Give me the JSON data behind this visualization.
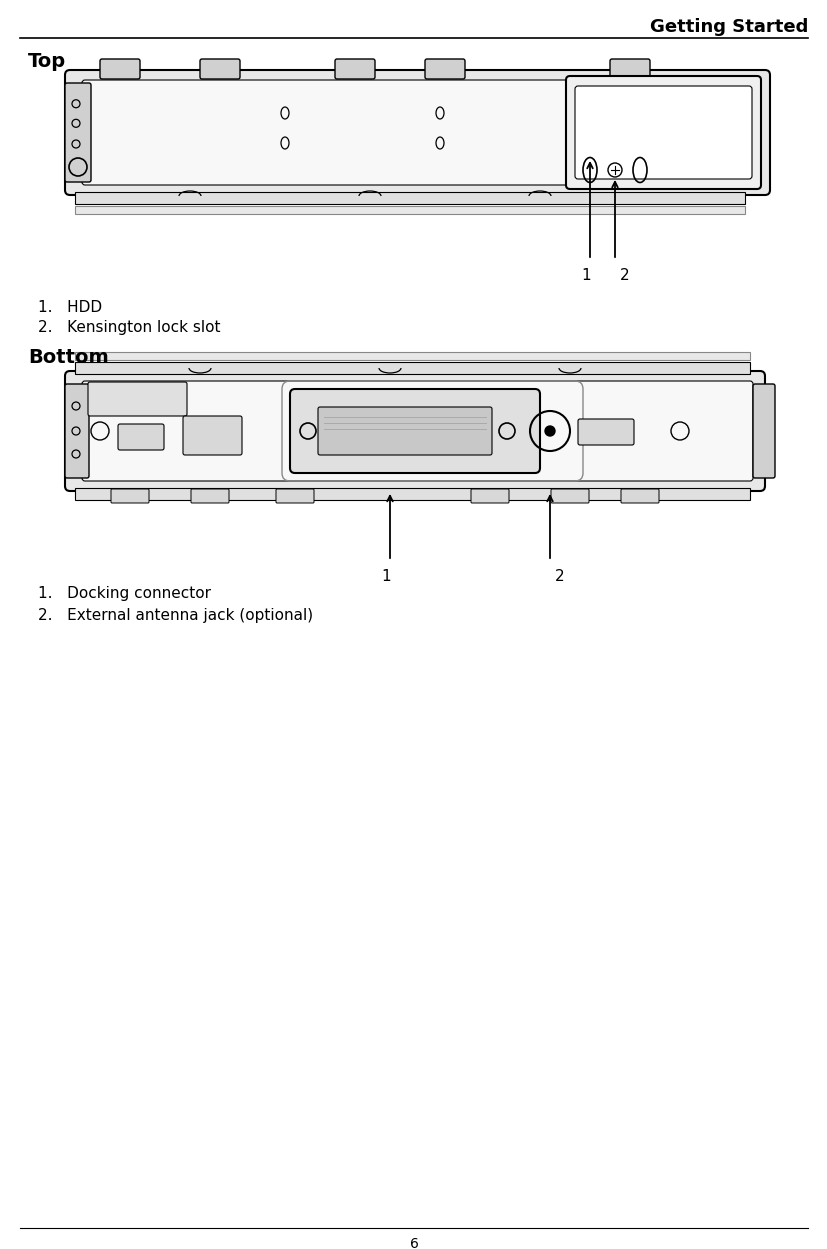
{
  "title": "Getting Started",
  "page_number": "6",
  "bg_color": "#ffffff",
  "line_color": "#000000",
  "section1_heading": "Top",
  "section2_heading": "Bottom",
  "top_labels": [
    "1",
    "2"
  ],
  "bottom_labels": [
    "1",
    "2"
  ],
  "top_item1": "1.   HDD",
  "top_item2": "2.   Kensington lock slot",
  "bottom_item1": "1.   Docking connector",
  "bottom_item2": "2.   External antenna jack (optional)",
  "body_fontsize": 11,
  "title_fontsize": 13,
  "heading_fontsize": 13,
  "label_fontsize": 11
}
